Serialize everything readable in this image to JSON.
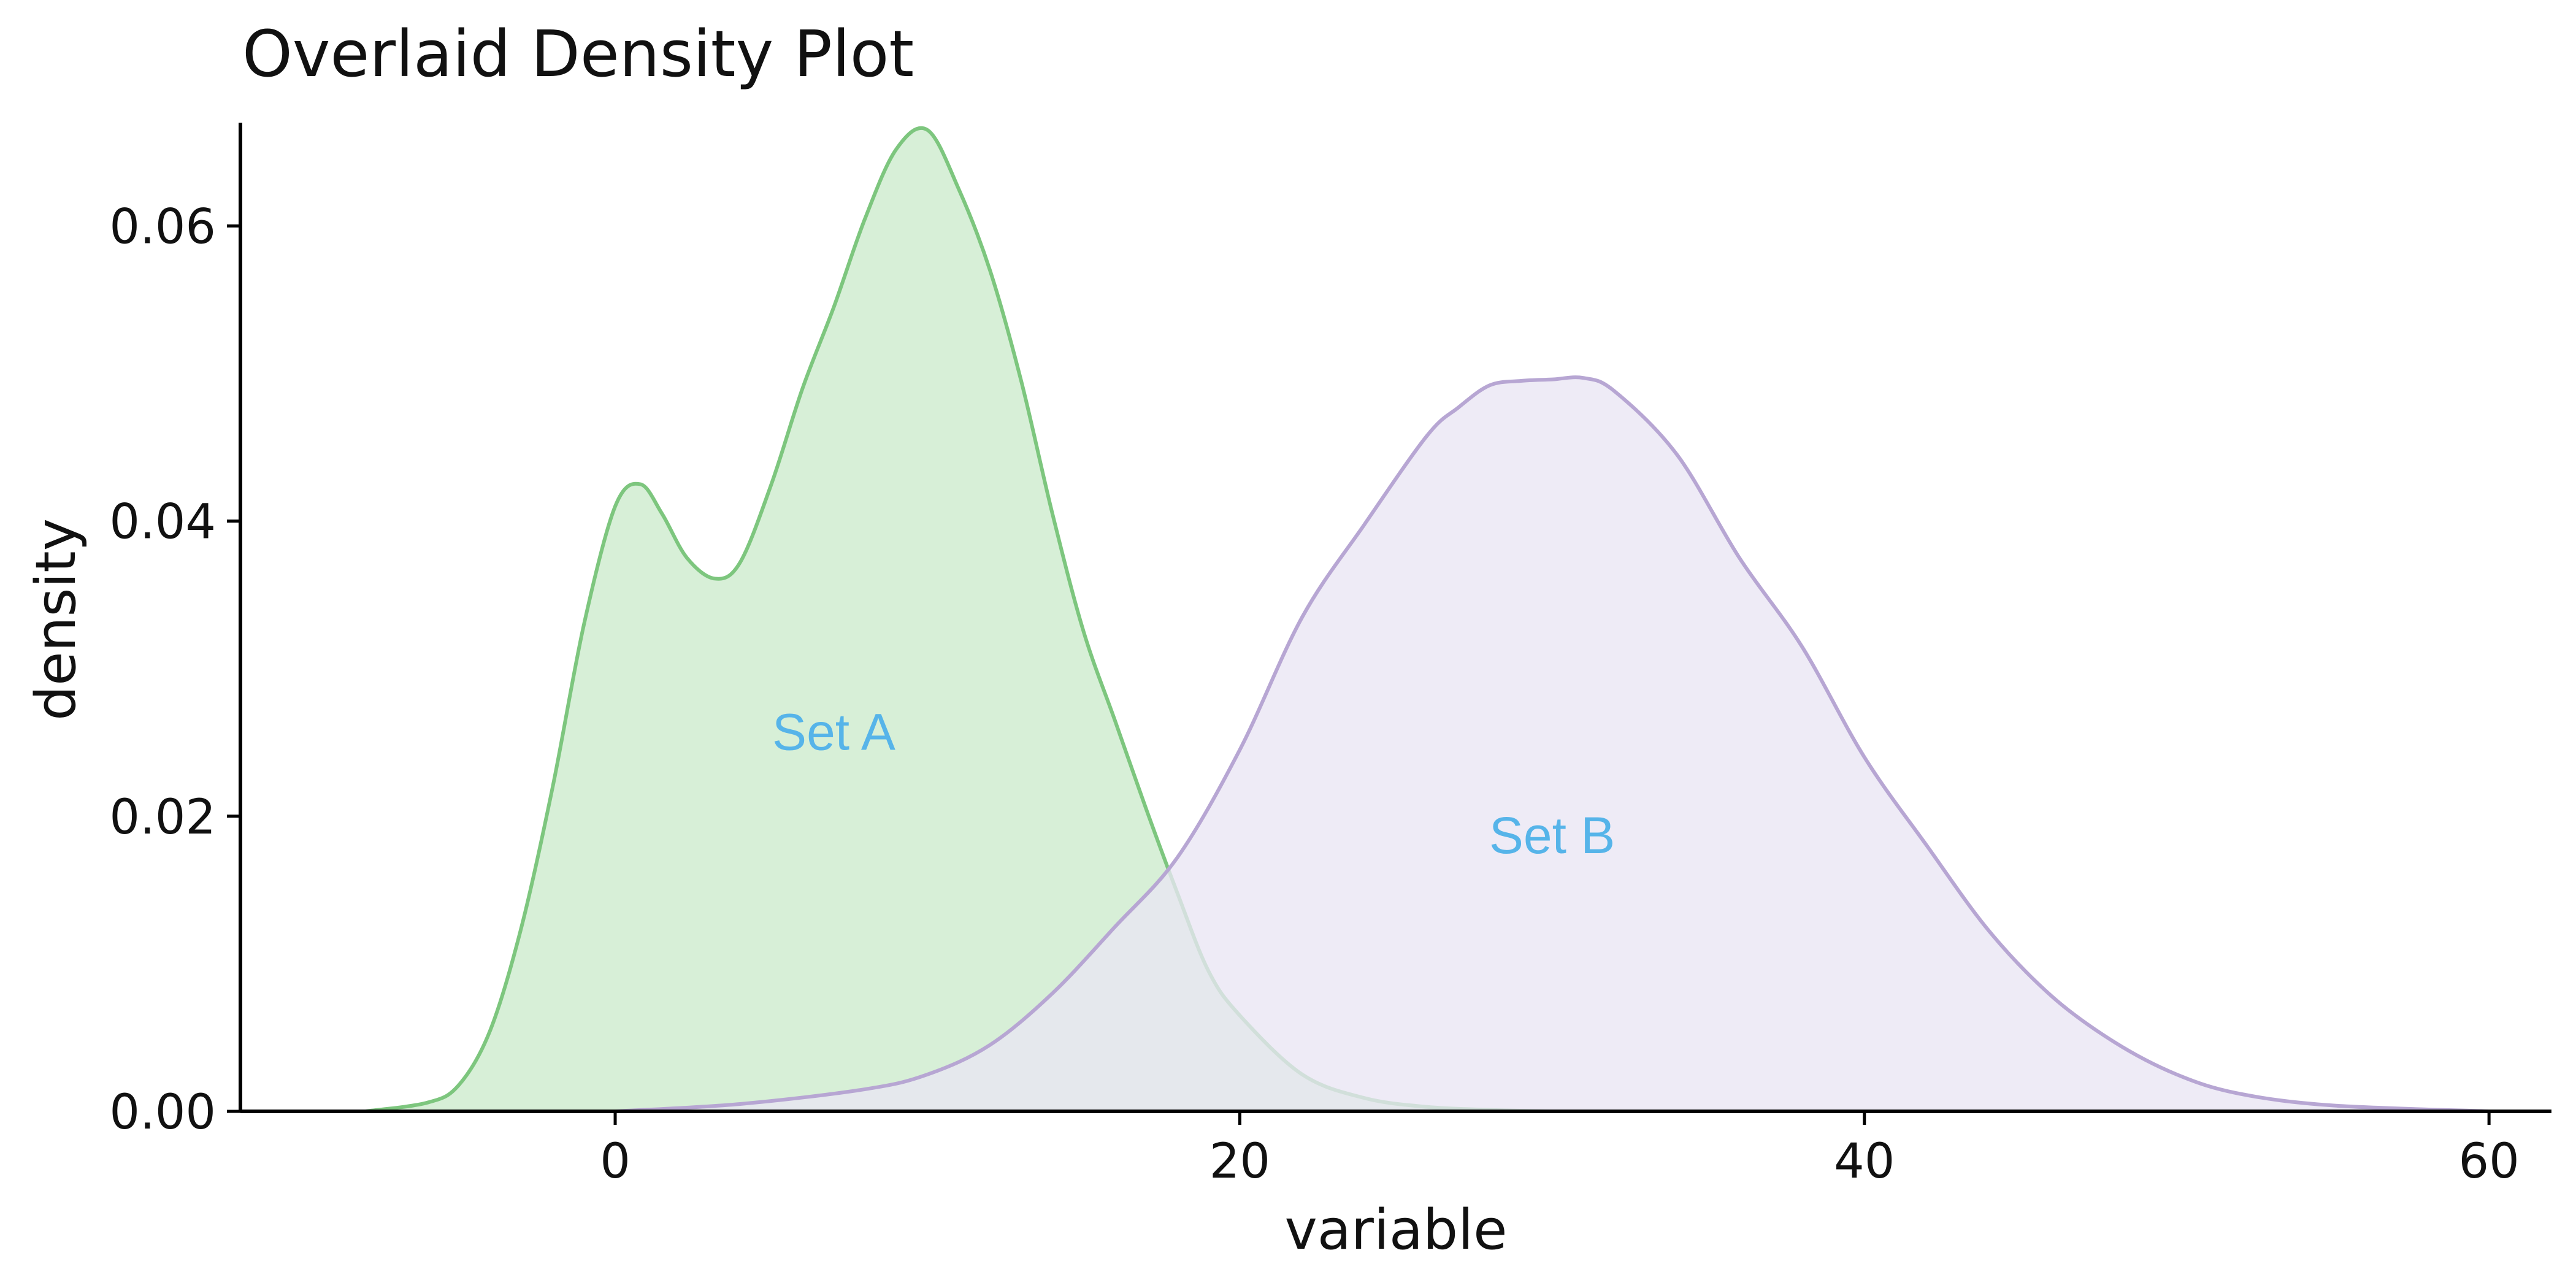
{
  "chart_data": {
    "type": "area",
    "title": "Overlaid Density Plot",
    "xlabel": "variable",
    "ylabel": "density",
    "xlim": [
      -12,
      62
    ],
    "ylim": [
      0,
      0.067
    ],
    "xticks": [
      0,
      20,
      40,
      60
    ],
    "yticks": [
      0.0,
      0.02,
      0.04,
      0.06
    ],
    "xtick_labels": [
      "0",
      "20",
      "40",
      "60"
    ],
    "ytick_labels": [
      "0.00",
      "0.02",
      "0.04",
      "0.06"
    ],
    "grid": false,
    "legend": "none",
    "colors": {
      "set_a_line": "#7dc67e",
      "set_a_fill": "#d7efd7",
      "set_b_line": "#b7a6d3",
      "set_b_fill": "#e9e5f3",
      "annotation": "#56b4e9",
      "axis": "#000000"
    },
    "series": [
      {
        "name": "Set A",
        "x": [
          -8,
          -6,
          -5,
          -4,
          -3,
          -2,
          -1,
          0,
          0.8,
          1.5,
          2.3,
          3.2,
          4,
          5,
          6,
          7,
          8,
          9,
          10,
          11,
          12,
          13,
          14,
          15,
          16,
          17,
          18,
          19,
          20,
          22,
          24,
          26,
          28,
          30
        ],
        "y": [
          0.0,
          0.0006,
          0.0018,
          0.0055,
          0.0125,
          0.022,
          0.033,
          0.041,
          0.0425,
          0.0405,
          0.0375,
          0.0361,
          0.0372,
          0.0425,
          0.049,
          0.0545,
          0.0605,
          0.0652,
          0.0665,
          0.0625,
          0.057,
          0.0495,
          0.0405,
          0.0325,
          0.0265,
          0.0205,
          0.0148,
          0.0095,
          0.0065,
          0.0025,
          0.0009,
          0.0003,
          0.0001,
          0.0
        ]
      },
      {
        "name": "Set B",
        "x": [
          0,
          4,
          8,
          10,
          12,
          14,
          16,
          18,
          20,
          22,
          24,
          26,
          27,
          28,
          29,
          30,
          31,
          32,
          34,
          36,
          38,
          40,
          42,
          44,
          46,
          48,
          50,
          52,
          55,
          60
        ],
        "y": [
          0.0,
          0.0005,
          0.0015,
          0.0025,
          0.0045,
          0.008,
          0.0125,
          0.0172,
          0.0245,
          0.0335,
          0.0398,
          0.0458,
          0.0477,
          0.0492,
          0.0495,
          0.0496,
          0.0497,
          0.0488,
          0.0445,
          0.0375,
          0.0315,
          0.024,
          0.018,
          0.0122,
          0.0078,
          0.0047,
          0.0025,
          0.0012,
          0.0004,
          0.0
        ]
      }
    ],
    "annotations": [
      {
        "text": "Set A",
        "x": 7,
        "y": 0.0245
      },
      {
        "text": "Set B",
        "x": 30,
        "y": 0.0175
      }
    ]
  }
}
